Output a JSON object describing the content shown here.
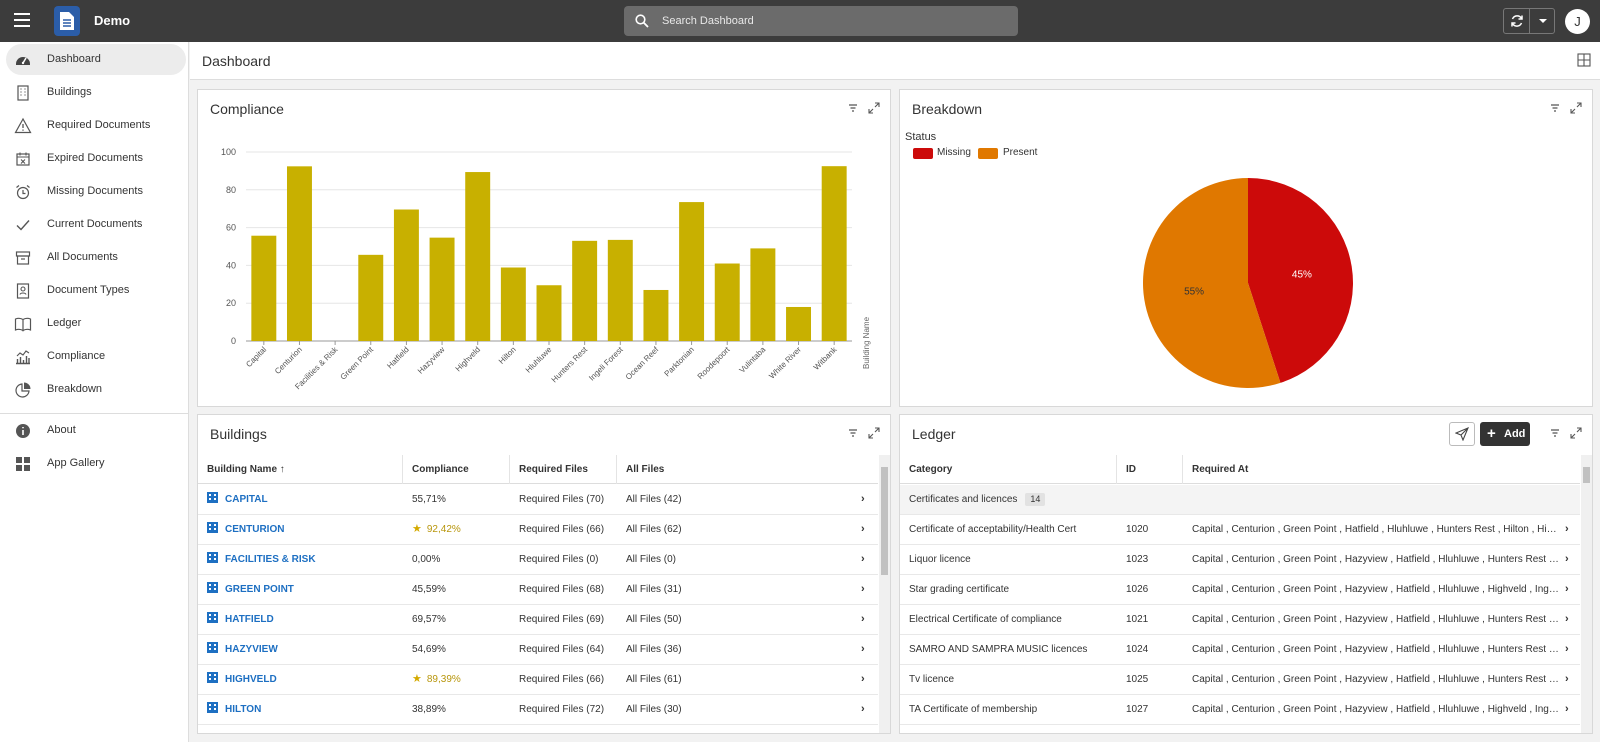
{
  "topbar": {
    "app_name": "Demo",
    "search_placeholder": "Search Dashboard",
    "avatar_initial": "J"
  },
  "sidebar": {
    "items": [
      {
        "label": "Dashboard",
        "icon": "dashboard-gauge-icon",
        "active": true
      },
      {
        "label": "Buildings",
        "icon": "building-icon"
      },
      {
        "label": "Required Documents",
        "icon": "warning-icon"
      },
      {
        "label": "Expired Documents",
        "icon": "calendar-x-icon"
      },
      {
        "label": "Missing Documents",
        "icon": "alarm-icon"
      },
      {
        "label": "Current Documents",
        "icon": "check-icon"
      },
      {
        "label": "All Documents",
        "icon": "archive-box-icon"
      },
      {
        "label": "Document Types",
        "icon": "contact-card-icon"
      },
      {
        "label": "Ledger",
        "icon": "book-icon"
      },
      {
        "label": "Compliance",
        "icon": "bar-chart-icon"
      },
      {
        "label": "Breakdown",
        "icon": "pie-chart-icon"
      }
    ],
    "footer_items": [
      {
        "label": "About",
        "icon": "info-icon"
      },
      {
        "label": "App Gallery",
        "icon": "grid-icon"
      }
    ]
  },
  "main": {
    "title": "Dashboard"
  },
  "compliance": {
    "title": "Compliance",
    "chart_data": {
      "type": "bar",
      "categories": [
        "Capital",
        "Centurion",
        "Facilities & Risk",
        "Green Point",
        "Hatfield",
        "Hazyview",
        "Highveld",
        "Hilton",
        "Hluhluwe",
        "Hunters Rest",
        "Ingeli Forest",
        "Ocean Reef",
        "Parktonian",
        "Roodepoort",
        "Vulintaba",
        "White River",
        "Witbank"
      ],
      "values": [
        55.71,
        92.42,
        0,
        45.59,
        69.57,
        54.69,
        89.39,
        38.89,
        29.5,
        53,
        53.5,
        27,
        73.5,
        41,
        49,
        18,
        92.5
      ],
      "xlabel": "Building Name",
      "ylim": [
        0,
        100
      ],
      "yticks": [
        "0",
        "20",
        "40",
        "60",
        "80",
        "100"
      ],
      "bar_color": "#c8b000",
      "grid": true
    }
  },
  "breakdown": {
    "title": "Breakdown",
    "chart_data": {
      "type": "pie",
      "legend_title": "Status",
      "legend_position": "top-left",
      "slices": [
        {
          "name": "Missing",
          "value": 45,
          "label": "45%",
          "color": "#cc0a0a"
        },
        {
          "name": "Present",
          "value": 55,
          "label": "55%",
          "color": "#e07800"
        }
      ]
    }
  },
  "buildings": {
    "title": "Buildings",
    "columns": [
      "Building Name",
      "Compliance",
      "Required Files",
      "All Files"
    ],
    "sort_indicator": "↑",
    "rows": [
      {
        "name": "CAPITAL",
        "compliance": "55,71%",
        "required": "Required Files (70)",
        "all": "All Files (42)"
      },
      {
        "name": "CENTURION",
        "compliance": "92,42%",
        "required": "Required Files (66)",
        "all": "All Files (62)"
      },
      {
        "name": "FACILITIES & RISK",
        "compliance": "0,00%",
        "required": "Required Files (0)",
        "all": "All Files (0)"
      },
      {
        "name": "GREEN POINT",
        "compliance": "45,59%",
        "required": "Required Files (68)",
        "all": "All Files (31)"
      },
      {
        "name": "HATFIELD",
        "compliance": "69,57%",
        "required": "Required Files (69)",
        "all": "All Files (50)"
      },
      {
        "name": "HAZYVIEW",
        "compliance": "54,69%",
        "required": "Required Files (64)",
        "all": "All Files (36)"
      },
      {
        "name": "HIGHVELD",
        "compliance": "89,39%",
        "required": "Required Files (66)",
        "all": "All Files (61)"
      },
      {
        "name": "HILTON",
        "compliance": "38,89%",
        "required": "Required Files (72)",
        "all": "All Files (30)"
      }
    ]
  },
  "ledger": {
    "title": "Ledger",
    "add_label": "Add",
    "columns": [
      "Category",
      "ID",
      "Required At"
    ],
    "group": {
      "label": "Certificates and licences",
      "count": "14"
    },
    "rows": [
      {
        "category": "Certificate of acceptability/Health Cert",
        "id": "1020",
        "required_at": "Capital , Centurion , Green Point , Hatfield , Hluhluwe , Hunters Rest , Hilton , Highveld , Hazyview"
      },
      {
        "category": "Liquor licence",
        "id": "1023",
        "required_at": "Capital , Centurion , Green Point , Hazyview , Hatfield , Hluhluwe , Hunters Rest , Hilton"
      },
      {
        "category": "Star grading certificate",
        "id": "1026",
        "required_at": "Capital , Centurion , Green Point , Hazyview , Hatfield , Hluhluwe , Highveld , Ingeli Forest"
      },
      {
        "category": "Electrical Certificate of compliance",
        "id": "1021",
        "required_at": "Capital , Centurion , Green Point , Hazyview , Hatfield , Hluhluwe , Hunters Rest , Hilton"
      },
      {
        "category": "SAMRO AND SAMPRA MUSIC licences",
        "id": "1024",
        "required_at": "Capital , Centurion , Green Point , Hazyview , Hatfield , Hluhluwe , Hunters Rest , Hilton"
      },
      {
        "category": "Tv licence",
        "id": "1025",
        "required_at": "Capital , Centurion , Green Point , Hazyview , Hatfield , Hluhluwe , Hunters Rest , Hilton"
      },
      {
        "category": "TA Certificate of membership",
        "id": "1027",
        "required_at": "Capital , Centurion , Green Point , Hazyview , Hatfield , Hluhluwe , Highveld , Ingeli Forest"
      }
    ]
  }
}
